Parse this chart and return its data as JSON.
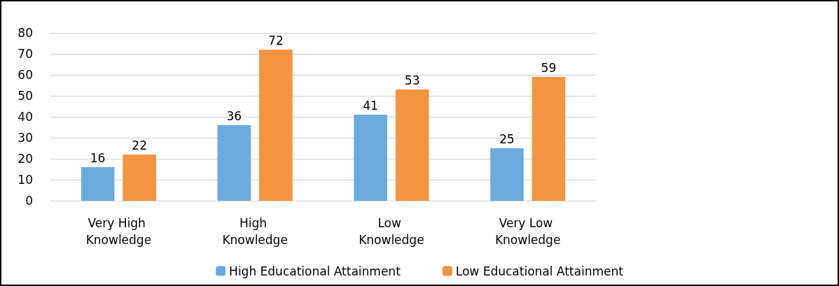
{
  "chart_data": {
    "type": "bar",
    "categories": [
      "Very High Knowledge",
      "High Knowledge",
      "Low Knowledge",
      "Very Low Knowledge"
    ],
    "series": [
      {
        "name": "High Educational Attainment",
        "color": "#6aabdc",
        "values": [
          16,
          36,
          41,
          25
        ]
      },
      {
        "name": "Low Educational Attainment",
        "color": "#f39440",
        "values": [
          22,
          72,
          53,
          59
        ]
      }
    ],
    "ylim": [
      0,
      80
    ],
    "yticks": [
      0,
      10,
      20,
      30,
      40,
      50,
      60,
      70,
      80
    ],
    "grid": "y",
    "legend": "bottom",
    "data_labels": true
  }
}
